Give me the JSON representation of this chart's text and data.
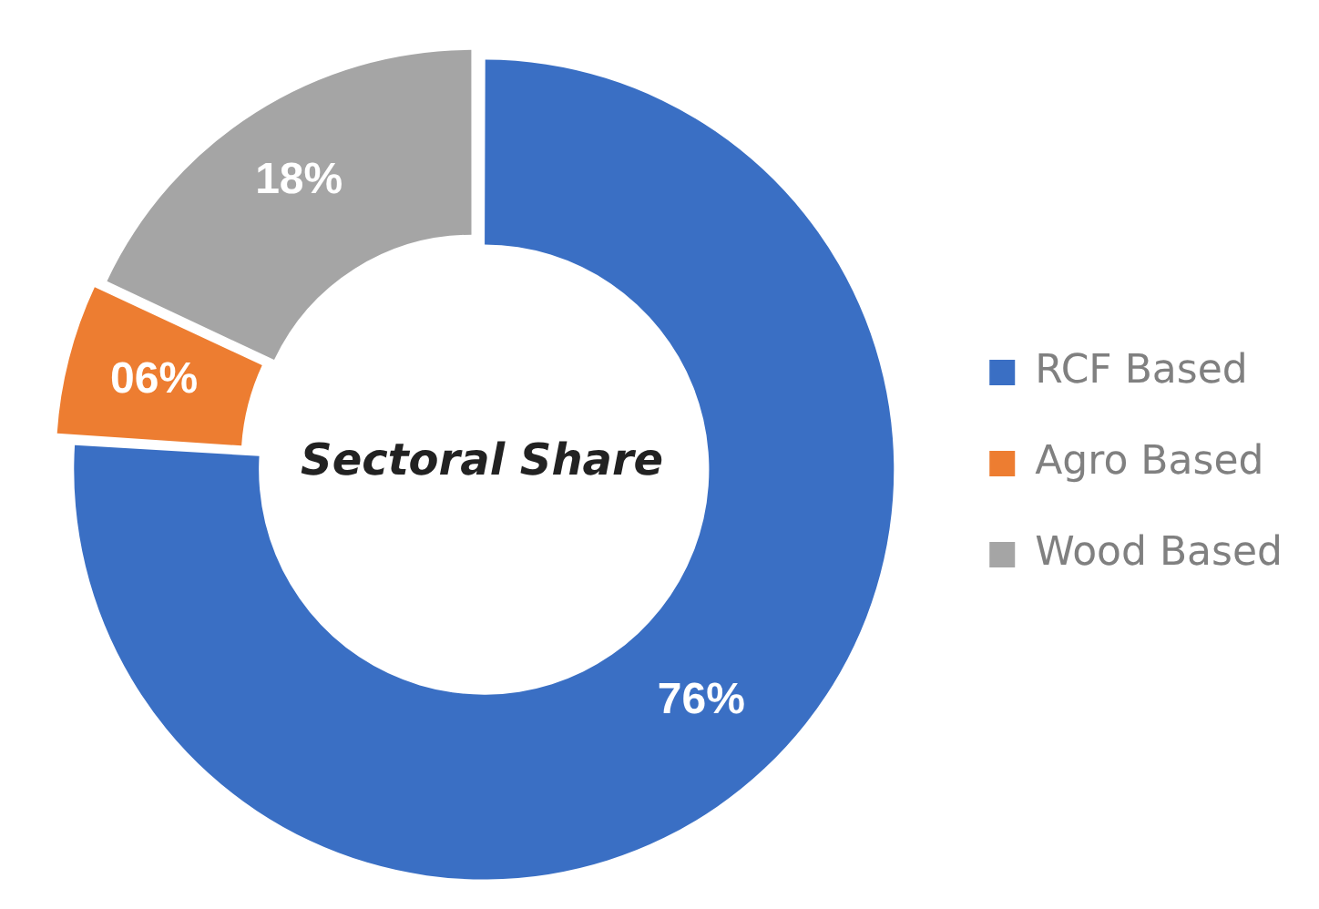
{
  "chart_data": {
    "type": "donut",
    "title": "Sectoral Share",
    "categories": [
      "RCF Based",
      "Agro Based",
      "Wood Based"
    ],
    "values": [
      76,
      6,
      18
    ],
    "value_labels": [
      "76%",
      "06%",
      "18%"
    ],
    "colors": [
      "#3a6fc4",
      "#ed7d31",
      "#a5a5a5"
    ],
    "legend": "right"
  }
}
